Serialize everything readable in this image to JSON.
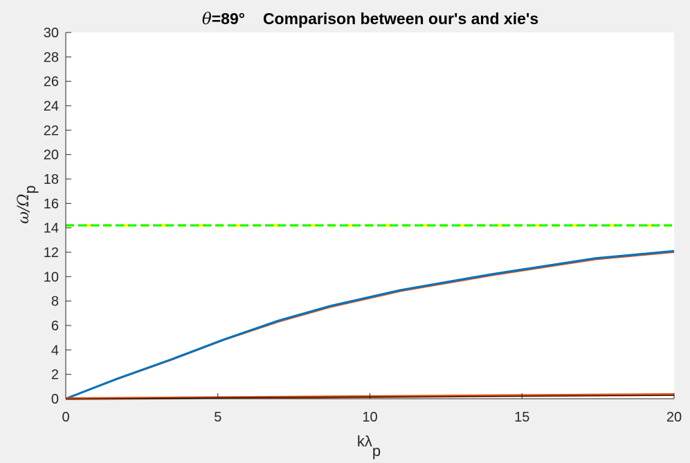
{
  "chart_data": {
    "type": "line",
    "title": {
      "theta_symbol": "θ",
      "theta_value": "=89°",
      "rest": "Comparison between our's and xie's"
    },
    "xlabel": {
      "main": "kλ",
      "sub": "p"
    },
    "ylabel": {
      "main": "ω/Ω",
      "sub": "p"
    },
    "xlim": [
      0,
      20
    ],
    "ylim": [
      0,
      30
    ],
    "x_ticks": [
      0,
      5,
      10,
      15,
      20
    ],
    "y_ticks": [
      0,
      2,
      4,
      6,
      8,
      10,
      12,
      14,
      16,
      18,
      20,
      22,
      24,
      26,
      28,
      30
    ],
    "grid": false,
    "legend": "none",
    "series": [
      {
        "color": "#d95319",
        "width": 2,
        "style": "solid",
        "x": [
          0,
          1.7,
          3.5,
          5.2,
          7,
          8.7,
          11,
          14,
          17.4,
          20
        ],
        "y": [
          0,
          1.6,
          3.2,
          4.8,
          6.3,
          7.5,
          8.8,
          10.1,
          11.4,
          12.0
        ]
      },
      {
        "color": "#0072bd",
        "width": 3,
        "style": "solid",
        "x": [
          0,
          1.7,
          3.5,
          5.2,
          7,
          8.7,
          11,
          14,
          17.4,
          20
        ],
        "y": [
          0,
          1.65,
          3.25,
          4.85,
          6.4,
          7.6,
          8.9,
          10.2,
          11.5,
          12.1
        ]
      },
      {
        "color": "#d95319",
        "width": 4,
        "style": "solid",
        "x": [
          0,
          5,
          10,
          15,
          20
        ],
        "y": [
          0,
          0.09,
          0.17,
          0.26,
          0.34
        ]
      },
      {
        "color": "#000000",
        "width": 1,
        "style": "solid",
        "x": [
          0,
          5,
          10,
          15,
          20
        ],
        "y": [
          0,
          0.07,
          0.14,
          0.21,
          0.28
        ]
      },
      {
        "color": "#ffff00",
        "width": 4,
        "style": "dashdot",
        "x": [
          0,
          20
        ],
        "y": [
          14.2,
          14.2
        ]
      },
      {
        "color": "#00ff00",
        "width": 3,
        "style": "dashed",
        "x": [
          0,
          20
        ],
        "y": [
          14.2,
          14.2
        ]
      }
    ]
  }
}
